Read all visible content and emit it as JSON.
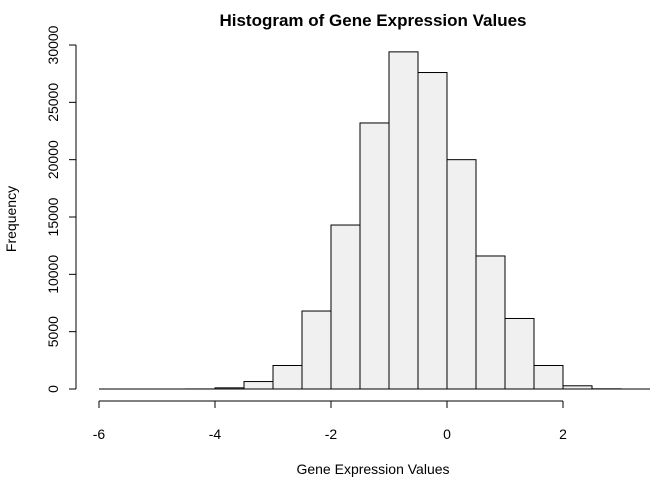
{
  "chart_data": {
    "type": "bar",
    "title": "Histogram of Gene Expression Values",
    "xlabel": "Gene Expression Values",
    "ylabel": "Frequency",
    "xlim": [
      -6,
      3.5
    ],
    "ylim": [
      0,
      30000
    ],
    "xticks": [
      -6,
      -4,
      -2,
      0,
      2
    ],
    "xtick_labels": [
      "-6",
      "-4",
      "-2",
      "0",
      "2"
    ],
    "yticks": [
      0,
      5000,
      10000,
      15000,
      20000,
      25000,
      30000
    ],
    "ytick_labels": [
      "0",
      "5000",
      "10000",
      "15000",
      "20000",
      "25000",
      "30000"
    ],
    "bins": [
      {
        "x0": -6.0,
        "x1": -5.5,
        "count": 0
      },
      {
        "x0": -5.5,
        "x1": -5.0,
        "count": 0
      },
      {
        "x0": -5.0,
        "x1": -4.5,
        "count": 0
      },
      {
        "x0": -4.5,
        "x1": -4.0,
        "count": 5
      },
      {
        "x0": -4.0,
        "x1": -3.5,
        "count": 100
      },
      {
        "x0": -3.5,
        "x1": -3.0,
        "count": 650
      },
      {
        "x0": -3.0,
        "x1": -2.5,
        "count": 2050
      },
      {
        "x0": -2.5,
        "x1": -2.0,
        "count": 6800
      },
      {
        "x0": -2.0,
        "x1": -1.5,
        "count": 14300
      },
      {
        "x0": -1.5,
        "x1": -1.0,
        "count": 23200
      },
      {
        "x0": -1.0,
        "x1": -0.5,
        "count": 29400
      },
      {
        "x0": -0.5,
        "x1": 0.0,
        "count": 27600
      },
      {
        "x0": 0.0,
        "x1": 0.5,
        "count": 20000
      },
      {
        "x0": 0.5,
        "x1": 1.0,
        "count": 11600
      },
      {
        "x0": 1.0,
        "x1": 1.5,
        "count": 6150
      },
      {
        "x0": 1.5,
        "x1": 2.0,
        "count": 2050
      },
      {
        "x0": 2.0,
        "x1": 2.5,
        "count": 280
      },
      {
        "x0": 2.5,
        "x1": 3.0,
        "count": 15
      },
      {
        "x0": 3.0,
        "x1": 3.5,
        "count": 0
      }
    ],
    "grid": false,
    "bar_fill": "#f0f0f0",
    "bar_stroke": "#000000"
  }
}
